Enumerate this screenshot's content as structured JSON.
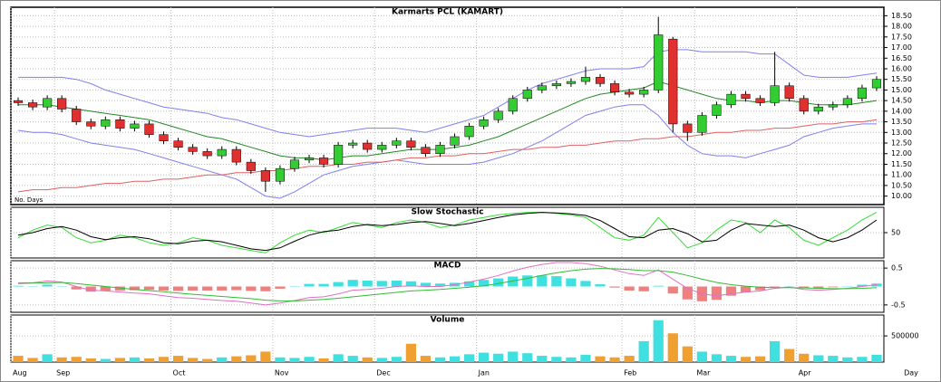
{
  "chart_data": [
    {
      "type": "candlestick",
      "title": "Karmarts PCL (KAMART)",
      "annotation": "No. Days",
      "grid": true,
      "up_color": "#33cc33",
      "down_color": "#e03030",
      "ylim": [
        9.6,
        18.9
      ],
      "yticks": [
        {
          "value": 10,
          "label": "10.00"
        },
        {
          "value": 10.5,
          "label": "10.50"
        },
        {
          "value": 11,
          "label": "11.00"
        },
        {
          "value": 11.5,
          "label": "11.50"
        },
        {
          "value": 12,
          "label": "12.00"
        },
        {
          "value": 12.5,
          "label": "12.50"
        },
        {
          "value": 13,
          "label": "13.00"
        },
        {
          "value": 13.5,
          "label": "13.50"
        },
        {
          "value": 14,
          "label": "14.00"
        },
        {
          "value": 14.5,
          "label": "14.50"
        },
        {
          "value": 15,
          "label": "15.00"
        },
        {
          "value": 15.5,
          "label": "15.50"
        },
        {
          "value": 16,
          "label": "16.00"
        },
        {
          "value": 16.5,
          "label": "16.50"
        },
        {
          "value": 17,
          "label": "17.00"
        },
        {
          "value": 17.5,
          "label": "17.50"
        },
        {
          "value": 18,
          "label": "18.00"
        },
        {
          "value": 18.5,
          "label": "18.50"
        }
      ],
      "open": [
        14.5,
        14.4,
        14.2,
        14.6,
        14.1,
        13.5,
        13.3,
        13.6,
        13.2,
        13.4,
        12.9,
        12.6,
        12.3,
        12.1,
        11.9,
        12.2,
        11.6,
        11.2,
        10.7,
        11.3,
        11.7,
        11.8,
        11.5,
        12.4,
        12.5,
        12.2,
        12.4,
        12.6,
        12.3,
        12.0,
        12.4,
        12.8,
        13.3,
        13.6,
        14.0,
        14.6,
        15.0,
        15.2,
        15.3,
        15.4,
        15.6,
        15.3,
        14.9,
        14.8,
        15.0,
        17.4,
        13.4,
        13.0,
        13.8,
        14.3,
        14.8,
        14.6,
        14.4,
        15.2,
        14.6,
        14.0,
        14.2,
        14.3,
        14.6,
        15.1
      ],
      "high": [
        14.65,
        14.55,
        14.75,
        14.75,
        14.25,
        13.65,
        13.75,
        13.75,
        13.55,
        13.55,
        13.05,
        12.75,
        12.45,
        12.25,
        12.35,
        12.35,
        11.75,
        11.35,
        11.45,
        11.85,
        11.95,
        11.95,
        12.55,
        12.65,
        12.65,
        12.55,
        12.75,
        12.75,
        12.45,
        12.55,
        12.95,
        13.45,
        13.75,
        14.15,
        14.75,
        15.15,
        15.35,
        15.45,
        15.55,
        16.1,
        15.75,
        15.45,
        15.05,
        15.15,
        18.45,
        17.5,
        13.55,
        13.95,
        14.45,
        14.95,
        14.95,
        14.75,
        16.8,
        15.35,
        14.75,
        14.35,
        14.45,
        14.75,
        15.25,
        15.65
      ],
      "low": [
        14.25,
        14.05,
        14.05,
        13.95,
        13.35,
        13.15,
        13.15,
        13.05,
        13.05,
        12.75,
        12.45,
        12.15,
        11.95,
        11.75,
        11.75,
        11.45,
        11.05,
        10.2,
        10.55,
        11.15,
        11.55,
        11.35,
        11.35,
        12.25,
        12.05,
        12.05,
        12.25,
        12.15,
        11.85,
        11.85,
        12.25,
        12.65,
        13.15,
        13.45,
        13.85,
        14.45,
        14.85,
        15.05,
        15.15,
        15.25,
        15.15,
        14.75,
        14.65,
        14.65,
        14.85,
        13.0,
        12.6,
        12.85,
        13.65,
        14.15,
        14.45,
        14.25,
        14.25,
        14.45,
        13.85,
        13.85,
        14.05,
        14.15,
        14.45,
        14.95
      ],
      "close": [
        14.4,
        14.2,
        14.6,
        14.1,
        13.5,
        13.3,
        13.6,
        13.2,
        13.4,
        12.9,
        12.6,
        12.3,
        12.1,
        11.9,
        12.2,
        11.6,
        11.2,
        10.7,
        11.3,
        11.7,
        11.8,
        11.5,
        12.4,
        12.5,
        12.2,
        12.4,
        12.6,
        12.3,
        12.0,
        12.4,
        12.8,
        13.3,
        13.6,
        14.0,
        14.6,
        15.0,
        15.2,
        15.3,
        15.4,
        15.6,
        15.3,
        14.9,
        14.8,
        15.0,
        17.6,
        13.4,
        13.0,
        13.8,
        14.3,
        14.8,
        14.6,
        14.4,
        15.2,
        14.6,
        14.0,
        14.2,
        14.3,
        14.6,
        15.1,
        15.5
      ],
      "overlays": [
        {
          "color": "#7f7ff0",
          "values": [
            15.6,
            15.6,
            15.6,
            15.6,
            15.5,
            15.3,
            15.0,
            14.8,
            14.6,
            14.4,
            14.2,
            14.1,
            14.0,
            13.9,
            13.7,
            13.6,
            13.4,
            13.2,
            13.0,
            12.9,
            12.8,
            12.9,
            13.0,
            13.1,
            13.2,
            13.2,
            13.2,
            13.1,
            13.0,
            13.2,
            13.4,
            13.6,
            13.8,
            14.2,
            14.6,
            15.0,
            15.3,
            15.5,
            15.7,
            15.9,
            16.0,
            16.0,
            16.0,
            16.1,
            16.8,
            16.9,
            16.9,
            16.8,
            16.8,
            16.8,
            16.8,
            16.7,
            16.7,
            16.2,
            15.7,
            15.6,
            15.6,
            15.6,
            15.7,
            15.8
          ]
        },
        {
          "color": "#7f7ff0",
          "values": [
            13.1,
            13.0,
            13.0,
            12.9,
            12.7,
            12.5,
            12.4,
            12.3,
            12.2,
            12.0,
            11.8,
            11.6,
            11.4,
            11.2,
            11.0,
            10.8,
            10.4,
            10.0,
            9.9,
            10.2,
            10.6,
            11.0,
            11.2,
            11.4,
            11.5,
            11.6,
            11.7,
            11.6,
            11.5,
            11.5,
            11.5,
            11.5,
            11.6,
            11.8,
            12.0,
            12.3,
            12.6,
            13.0,
            13.4,
            13.8,
            14.0,
            14.2,
            14.3,
            14.3,
            13.8,
            13.0,
            12.4,
            12.0,
            11.9,
            11.9,
            11.8,
            12.0,
            12.2,
            12.4,
            12.8,
            13.0,
            13.2,
            13.3,
            13.4,
            13.4
          ]
        },
        {
          "color": "#228822",
          "values": [
            14.3,
            14.3,
            14.3,
            14.2,
            14.1,
            14.0,
            13.9,
            13.8,
            13.7,
            13.6,
            13.4,
            13.2,
            13.0,
            12.8,
            12.7,
            12.5,
            12.3,
            12.1,
            11.9,
            11.8,
            11.8,
            11.7,
            11.8,
            11.9,
            11.9,
            12.0,
            12.1,
            12.2,
            12.2,
            12.2,
            12.3,
            12.4,
            12.6,
            12.8,
            13.1,
            13.4,
            13.7,
            14.0,
            14.3,
            14.6,
            14.8,
            14.9,
            15.0,
            15.1,
            15.4,
            15.2,
            15.0,
            14.8,
            14.6,
            14.5,
            14.5,
            14.4,
            14.5,
            14.5,
            14.4,
            14.3,
            14.3,
            14.3,
            14.4,
            14.5
          ]
        },
        {
          "color": "#e06060",
          "values": [
            10.2,
            10.3,
            10.3,
            10.4,
            10.4,
            10.5,
            10.6,
            10.6,
            10.7,
            10.7,
            10.8,
            10.8,
            10.9,
            11.0,
            11.0,
            11.1,
            11.1,
            11.2,
            11.2,
            11.3,
            11.4,
            11.4,
            11.5,
            11.5,
            11.6,
            11.6,
            11.7,
            11.8,
            11.8,
            11.9,
            11.9,
            12.0,
            12.0,
            12.1,
            12.2,
            12.2,
            12.3,
            12.3,
            12.4,
            12.4,
            12.5,
            12.6,
            12.6,
            12.7,
            12.7,
            12.8,
            12.8,
            12.9,
            13.0,
            13.0,
            13.1,
            13.1,
            13.2,
            13.2,
            13.3,
            13.4,
            13.4,
            13.5,
            13.5,
            13.6
          ]
        }
      ]
    },
    {
      "type": "line",
      "title": "Slow Stochastic",
      "grid": true,
      "ylim": [
        0,
        100
      ],
      "yticks": [
        50
      ],
      "series": [
        {
          "color": "#33dd33",
          "values": [
            40,
            55,
            65,
            60,
            40,
            30,
            35,
            45,
            40,
            30,
            25,
            30,
            40,
            35,
            25,
            20,
            15,
            10,
            30,
            45,
            55,
            50,
            60,
            70,
            65,
            60,
            70,
            75,
            70,
            60,
            65,
            75,
            80,
            85,
            88,
            90,
            90,
            88,
            85,
            80,
            60,
            40,
            35,
            45,
            80,
            50,
            20,
            30,
            55,
            75,
            70,
            50,
            75,
            60,
            35,
            25,
            40,
            55,
            75,
            90
          ]
        },
        {
          "color": "#000000",
          "values": [
            45,
            50,
            58,
            62,
            55,
            42,
            36,
            40,
            42,
            38,
            30,
            28,
            33,
            35,
            32,
            25,
            18,
            15,
            20,
            33,
            45,
            52,
            55,
            62,
            66,
            64,
            66,
            70,
            72,
            68,
            64,
            68,
            74,
            80,
            85,
            88,
            90,
            89,
            87,
            84,
            74,
            58,
            42,
            40,
            55,
            58,
            48,
            32,
            35,
            55,
            68,
            65,
            62,
            65,
            55,
            40,
            32,
            40,
            55,
            75
          ]
        }
      ]
    },
    {
      "type": "macd",
      "title": "MACD",
      "grid": true,
      "ylim": [
        -0.7,
        0.7
      ],
      "yticks": [
        0.5,
        -0.5
      ],
      "series": [
        {
          "color": "#e070c0",
          "values": [
            0.1,
            0.1,
            0.15,
            0.12,
            0.0,
            -0.1,
            -0.12,
            -0.15,
            -0.18,
            -0.2,
            -0.25,
            -0.3,
            -0.32,
            -0.35,
            -0.38,
            -0.4,
            -0.45,
            -0.5,
            -0.45,
            -0.38,
            -0.3,
            -0.28,
            -0.2,
            -0.1,
            -0.08,
            -0.05,
            0.0,
            0.02,
            0.0,
            0.0,
            0.05,
            0.12,
            0.2,
            0.3,
            0.42,
            0.52,
            0.6,
            0.65,
            0.65,
            0.62,
            0.55,
            0.45,
            0.35,
            0.3,
            0.45,
            0.2,
            -0.05,
            -0.2,
            -0.25,
            -0.2,
            -0.15,
            -0.12,
            -0.05,
            -0.02,
            -0.08,
            -0.1,
            -0.08,
            -0.05,
            0.0,
            0.05
          ]
        },
        {
          "color": "#33bb33",
          "values": [
            0.08,
            0.09,
            0.1,
            0.11,
            0.08,
            0.04,
            0.0,
            -0.04,
            -0.08,
            -0.11,
            -0.14,
            -0.18,
            -0.21,
            -0.24,
            -0.27,
            -0.3,
            -0.33,
            -0.37,
            -0.39,
            -0.39,
            -0.37,
            -0.35,
            -0.32,
            -0.28,
            -0.24,
            -0.2,
            -0.16,
            -0.12,
            -0.1,
            -0.08,
            -0.05,
            -0.02,
            0.02,
            0.08,
            0.15,
            0.22,
            0.3,
            0.37,
            0.43,
            0.47,
            0.49,
            0.48,
            0.46,
            0.43,
            0.43,
            0.39,
            0.3,
            0.2,
            0.11,
            0.05,
            0.01,
            -0.02,
            -0.03,
            -0.03,
            -0.04,
            -0.05,
            -0.06,
            -0.06,
            -0.05,
            -0.03
          ]
        }
      ],
      "histogram": {
        "up_color": "#40e0e0",
        "down_color": "#f08080",
        "values": [
          0.02,
          0.01,
          0.05,
          0.01,
          -0.08,
          -0.14,
          -0.12,
          -0.11,
          -0.1,
          -0.09,
          -0.11,
          -0.12,
          -0.11,
          -0.11,
          -0.11,
          -0.1,
          -0.12,
          -0.13,
          -0.06,
          0.01,
          0.07,
          0.07,
          0.12,
          0.18,
          0.16,
          0.15,
          0.16,
          0.14,
          0.1,
          0.08,
          0.1,
          0.14,
          0.18,
          0.22,
          0.27,
          0.3,
          0.3,
          0.28,
          0.22,
          0.15,
          0.06,
          -0.03,
          -0.11,
          -0.13,
          0.02,
          -0.19,
          -0.35,
          -0.4,
          -0.36,
          -0.25,
          -0.16,
          -0.1,
          -0.02,
          0.01,
          -0.04,
          -0.05,
          -0.02,
          0.01,
          0.05,
          0.08
        ]
      }
    },
    {
      "type": "bar",
      "title": "Volume",
      "grid": true,
      "ylim": [
        0,
        900000
      ],
      "yticks": [
        500000
      ],
      "up_color": "#40e0e0",
      "down_color": "#f0a030",
      "x_label": "Day",
      "categories": [
        "Aug",
        null,
        null,
        "Sep",
        null,
        null,
        null,
        null,
        null,
        null,
        null,
        "Oct",
        null,
        null,
        null,
        null,
        null,
        null,
        "Nov",
        null,
        null,
        null,
        null,
        null,
        null,
        "Dec",
        null,
        null,
        null,
        null,
        null,
        null,
        "Jan",
        null,
        null,
        null,
        null,
        null,
        null,
        null,
        null,
        null,
        "Feb",
        null,
        null,
        null,
        null,
        "Mar",
        null,
        null,
        null,
        null,
        null,
        null,
        "Apr",
        null,
        null,
        null,
        null,
        null
      ],
      "values": [
        120000,
        80000,
        150000,
        90000,
        100000,
        70000,
        60000,
        80000,
        90000,
        70000,
        100000,
        120000,
        80000,
        60000,
        90000,
        110000,
        130000,
        200000,
        90000,
        80000,
        100000,
        70000,
        150000,
        120000,
        90000,
        80000,
        100000,
        350000,
        120000,
        90000,
        110000,
        150000,
        180000,
        160000,
        200000,
        170000,
        120000,
        100000,
        90000,
        140000,
        110000,
        90000,
        120000,
        400000,
        800000,
        550000,
        300000,
        200000,
        150000,
        120000,
        100000,
        110000,
        400000,
        250000,
        160000,
        130000,
        120000,
        90000,
        100000,
        140000
      ]
    }
  ]
}
